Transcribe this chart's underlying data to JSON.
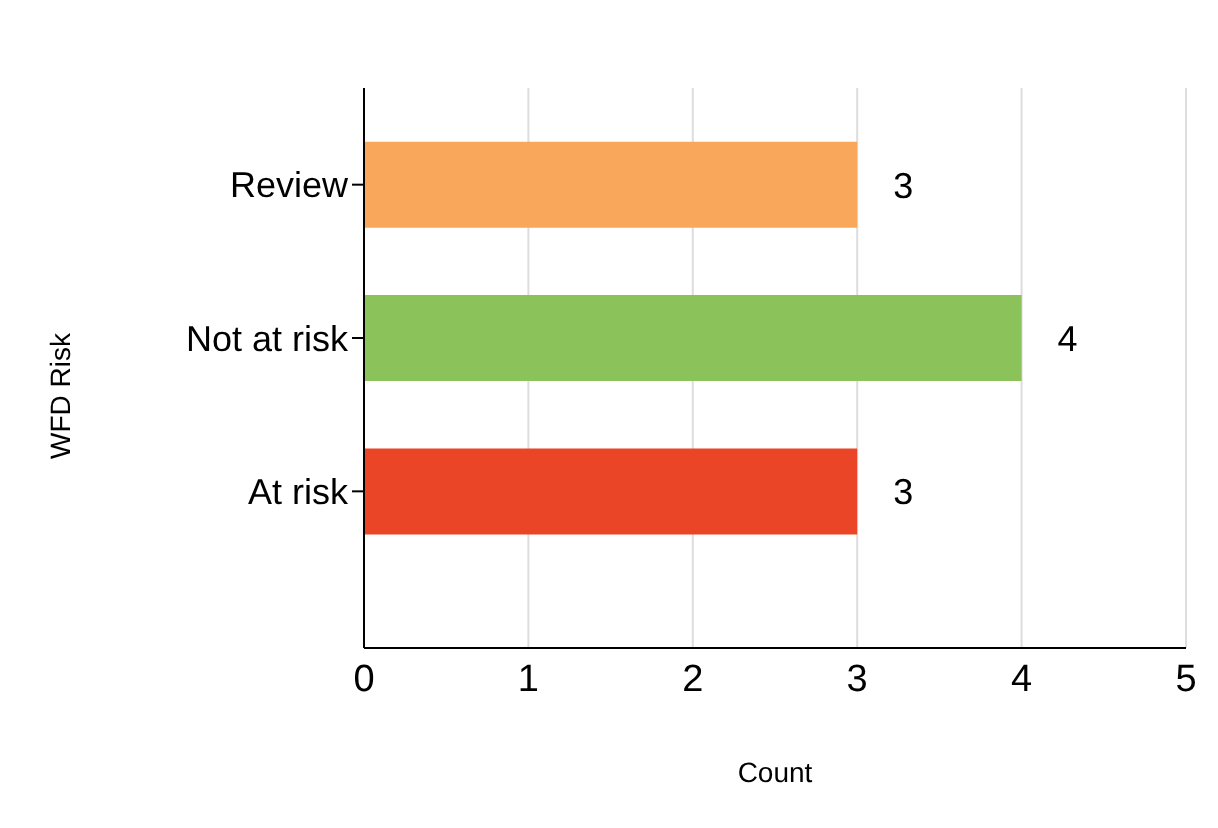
{
  "chart_data": {
    "type": "bar",
    "orientation": "horizontal",
    "xlabel": "Count",
    "ylabel": "WFD Risk",
    "categories": [
      "Review",
      "Not at risk",
      "At risk"
    ],
    "values": [
      3,
      4,
      3
    ],
    "colors": [
      "#f9a75a",
      "#8cc25a",
      "#ea4526"
    ],
    "xlim": [
      0,
      5
    ],
    "xticks": [
      0,
      1,
      2,
      3,
      4,
      5
    ],
    "grid": "x",
    "data_labels": true
  }
}
